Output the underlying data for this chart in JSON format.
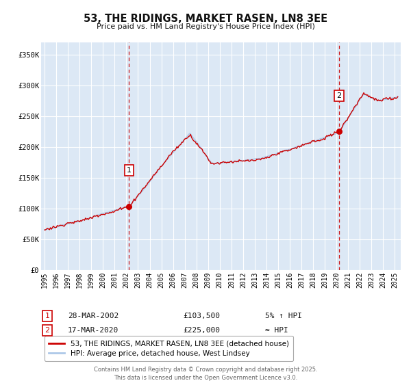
{
  "title": "53, THE RIDINGS, MARKET RASEN, LN8 3EE",
  "subtitle": "Price paid vs. HM Land Registry's House Price Index (HPI)",
  "ylim": [
    0,
    370000
  ],
  "yticks": [
    0,
    50000,
    100000,
    150000,
    200000,
    250000,
    300000,
    350000
  ],
  "ytick_labels": [
    "£0",
    "£50K",
    "£100K",
    "£150K",
    "£200K",
    "£250K",
    "£300K",
    "£350K"
  ],
  "xlim_start": 1994.7,
  "xlim_end": 2025.5,
  "xticks": [
    1995,
    1996,
    1997,
    1998,
    1999,
    2000,
    2001,
    2002,
    2003,
    2004,
    2005,
    2006,
    2007,
    2008,
    2009,
    2010,
    2011,
    2012,
    2013,
    2014,
    2015,
    2016,
    2017,
    2018,
    2019,
    2020,
    2021,
    2022,
    2023,
    2024,
    2025
  ],
  "hpi_color": "#adc8e8",
  "price_color": "#cc0000",
  "marker1_x": 2002.23,
  "marker1_y": 103500,
  "marker2_x": 2020.21,
  "marker2_y": 225000,
  "legend_line1": "53, THE RIDINGS, MARKET RASEN, LN8 3EE (detached house)",
  "legend_line2": "HPI: Average price, detached house, West Lindsey",
  "annotation1_num": "1",
  "annotation1_date": "28-MAR-2002",
  "annotation1_price": "£103,500",
  "annotation1_hpi": "5% ↑ HPI",
  "annotation2_num": "2",
  "annotation2_date": "17-MAR-2020",
  "annotation2_price": "£225,000",
  "annotation2_hpi": "≈ HPI",
  "footer": "Contains HM Land Registry data © Crown copyright and database right 2025.\nThis data is licensed under the Open Government Licence v3.0.",
  "background_color": "#ffffff",
  "plot_bg_color": "#dce8f5",
  "grid_color": "#ffffff"
}
